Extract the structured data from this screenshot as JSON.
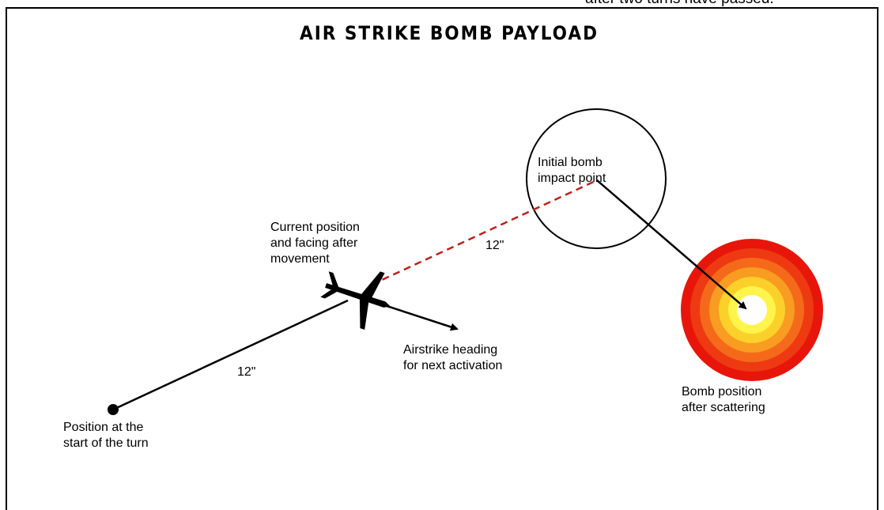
{
  "header": {
    "caption": "after two turns have passed.",
    "title": "AIR STRIKE BOMB PAYLOAD"
  },
  "labels": {
    "current": [
      "Current position",
      "and facing after",
      "movement"
    ],
    "initial": [
      "Initial bomb",
      "impact point"
    ],
    "heading": [
      "Airstrike heading",
      "for next activation"
    ],
    "start": [
      "Position at the",
      "start of the turn"
    ],
    "scatter": [
      "Bomb position",
      "after scattering"
    ],
    "move_distance": "12\"",
    "bomb_distance": "12\""
  }
}
